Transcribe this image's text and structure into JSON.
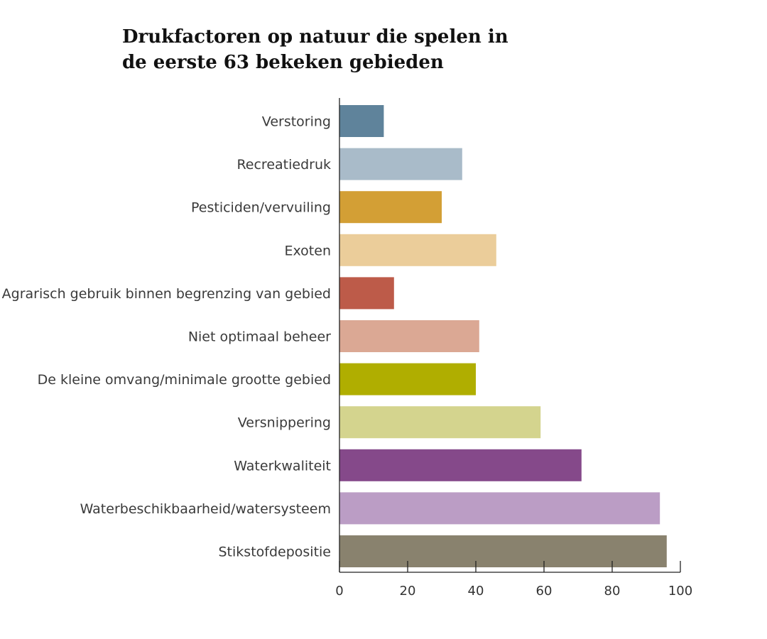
{
  "chart_data": {
    "type": "bar",
    "orientation": "horizontal",
    "title_lines": [
      "Drukfactoren op natuur die spelen in",
      "de eerste 63 bekeken gebieden"
    ],
    "xlabel": "",
    "ylabel": "",
    "xlim": [
      0,
      100
    ],
    "x_ticks": [
      0,
      20,
      40,
      60,
      80,
      100
    ],
    "x_tick_labels": [
      "0",
      "20",
      "40",
      "60",
      "80",
      "100"
    ],
    "grid": false,
    "legend": "none",
    "categories": [
      "Verstoring",
      "Recreatiedruk",
      "Pesticiden/vervuiling",
      "Exoten",
      "Agrarisch gebruik binnen begrenzing van gebied",
      "Niet optimaal beheer",
      "De kleine omvang/minimale grootte gebied",
      "Versnippering",
      "Waterkwaliteit",
      "Waterbeschikbaarheid/watersysteem",
      "Stikstofdepositie"
    ],
    "values": [
      13,
      36,
      30,
      46,
      16,
      41,
      40,
      59,
      71,
      94,
      96
    ],
    "colors": [
      "#5f839b",
      "#a9bbc9",
      "#d39f35",
      "#ebcd9a",
      "#bd5b49",
      "#dba894",
      "#b0ae00",
      "#d4d48e",
      "#85498a",
      "#bb9dc5",
      "#89826e"
    ],
    "axis_color": "#222222"
  }
}
